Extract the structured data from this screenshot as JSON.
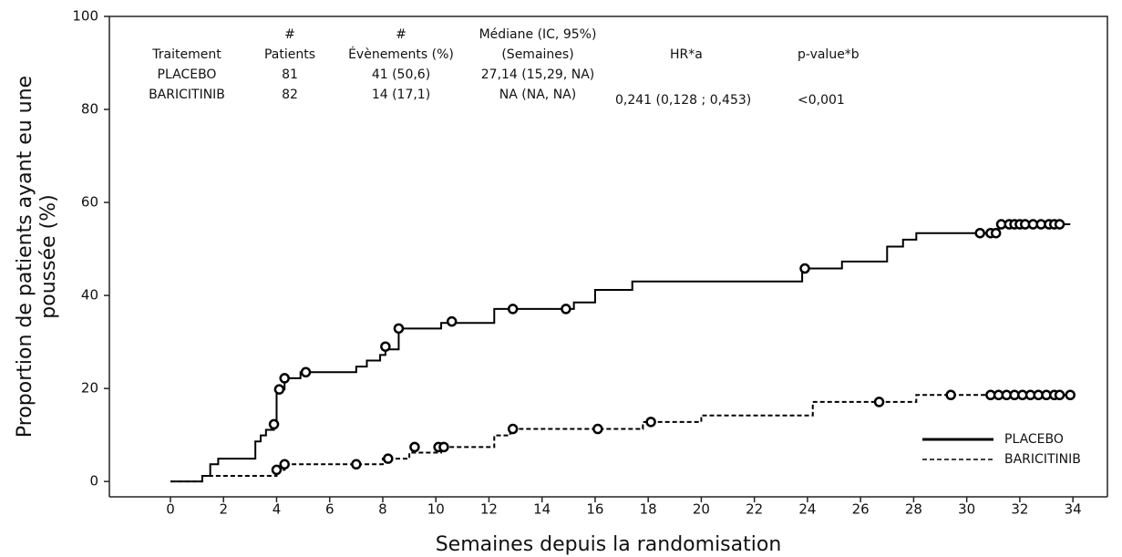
{
  "chart_data": {
    "type": "km",
    "table": {
      "columns": [
        [
          "Traitement"
        ],
        [
          "#",
          "Patients"
        ],
        [
          "#",
          "Évènements (%)"
        ],
        [
          "Médiane (IC, 95%)",
          "(Semaines)"
        ],
        [
          "HR*a"
        ],
        [
          "p-value*b"
        ]
      ],
      "rows": [
        [
          "PLACEBO",
          "81",
          "41 (50,6)",
          "27,14 (15,29, NA)"
        ],
        [
          "BARICITINIB",
          "82",
          "14 (17,1)",
          "NA (NA, NA)",
          "0,241 (0,128 ; 0,453)",
          "<0,001"
        ]
      ]
    },
    "x_label": "Semaines depuis la randomisation",
    "y_label": [
      "Proportion de patients ayant eu une",
      "poussée (%)"
    ],
    "xlim": [
      -2.3,
      35.3
    ],
    "ylim": [
      -3.3,
      100
    ],
    "xticks": [
      0,
      2,
      4,
      6,
      8,
      10,
      12,
      14,
      16,
      18,
      20,
      22,
      24,
      26,
      28,
      30,
      32,
      34
    ],
    "yticks": [
      0,
      20,
      40,
      60,
      80,
      100
    ],
    "legend": "lower right",
    "series": [
      {
        "name": "PLACEBO",
        "color": "#000000",
        "line_style": "solid",
        "x": [
          0,
          1.2,
          1.5,
          1.8,
          3.2,
          3.4,
          3.6,
          3.9,
          4.0,
          4.3,
          4.9,
          7.0,
          7.4,
          7.9,
          8.1,
          8.6,
          10.2,
          12.2,
          15.2,
          16.0,
          17.4,
          23.8,
          25.3,
          27.0,
          27.6,
          28.1,
          31.2,
          33.9
        ],
        "values": [
          0,
          1.2,
          3.7,
          4.9,
          8.6,
          9.9,
          11.1,
          12.3,
          19.8,
          22.2,
          23.5,
          24.7,
          26.0,
          27.2,
          28.4,
          32.9,
          34.1,
          37.1,
          38.5,
          41.2,
          43.0,
          45.8,
          47.3,
          50.5,
          52.0,
          53.4,
          55.3,
          55.3
        ],
        "censor_x": [
          3.9,
          4.1,
          4.3,
          5.1,
          8.1,
          8.6,
          10.6,
          12.9,
          14.9,
          23.9,
          30.5,
          30.9,
          31.1,
          31.3,
          31.6,
          31.8,
          32.0,
          32.2,
          32.5,
          32.8,
          33.1,
          33.3,
          33.5
        ],
        "censor_values": [
          12.3,
          19.8,
          22.2,
          23.5,
          29.0,
          32.9,
          34.4,
          37.1,
          37.1,
          45.8,
          53.4,
          53.4,
          53.4,
          55.3,
          55.3,
          55.3,
          55.3,
          55.3,
          55.3,
          55.3,
          55.3,
          55.3,
          55.3
        ]
      },
      {
        "name": "BARICITINIB",
        "color": "#000000",
        "line_style": "dashed",
        "x": [
          0,
          1.2,
          4.0,
          4.3,
          8.0,
          9.0,
          10.2,
          12.2,
          12.8,
          17.8,
          20.0,
          24.2,
          28.1,
          33.9
        ],
        "values": [
          0,
          1.2,
          2.5,
          3.7,
          4.9,
          6.2,
          7.4,
          9.9,
          11.3,
          12.8,
          14.2,
          17.1,
          18.6,
          18.6
        ],
        "censor_x": [
          4.0,
          4.3,
          7.0,
          8.2,
          9.2,
          10.1,
          10.3,
          12.9,
          16.1,
          18.1,
          26.7,
          29.4,
          30.9,
          31.2,
          31.5,
          31.8,
          32.1,
          32.4,
          32.7,
          33.0,
          33.3,
          33.5,
          33.9
        ],
        "censor_values": [
          2.5,
          3.7,
          3.7,
          4.9,
          7.4,
          7.4,
          7.4,
          11.3,
          11.3,
          12.8,
          17.1,
          18.6,
          18.6,
          18.6,
          18.6,
          18.6,
          18.6,
          18.6,
          18.6,
          18.6,
          18.6,
          18.6,
          18.6
        ]
      }
    ]
  }
}
